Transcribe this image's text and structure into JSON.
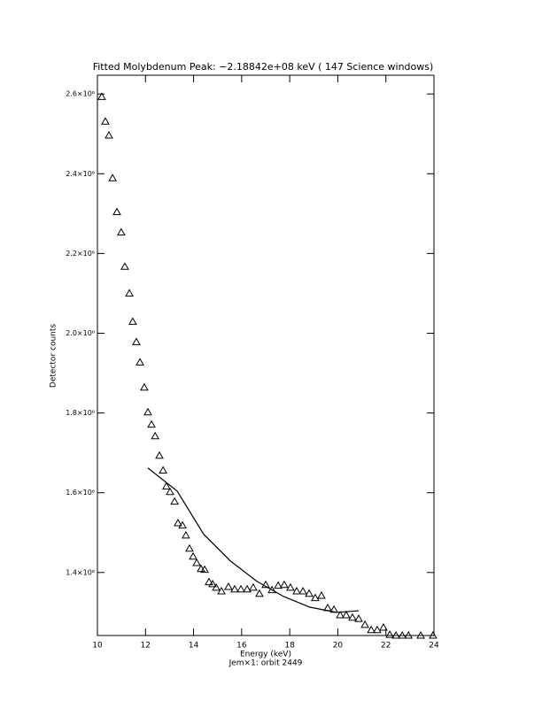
{
  "chart_data": {
    "type": "scatter",
    "title": "Fitted Molybdenum Peak:  −2.18842e+08 keV (         147 Science windows)",
    "xlabel": "Energy (keV)",
    "subtitle": "Jem×1: orbit 2449",
    "ylabel": "Detector counts",
    "xlim": [
      10,
      24
    ],
    "xticks": [
      10,
      12,
      14,
      16,
      18,
      20,
      22,
      24
    ],
    "ylim": [
      1242000,
      2647000
    ],
    "yticks": [
      {
        "value": 1400000,
        "label": "1.4×10⁶"
      },
      {
        "value": 1600000,
        "label": "1.6×10⁶"
      },
      {
        "value": 1800000,
        "label": "1.8×10⁶"
      },
      {
        "value": 2000000,
        "label": "2.0×10⁶"
      },
      {
        "value": 2200000,
        "label": "2.2×10⁶"
      },
      {
        "value": 2400000,
        "label": "2.4×10⁶"
      },
      {
        "value": 2600000,
        "label": "2.6×10⁶"
      }
    ],
    "series": [
      {
        "mode": "markers",
        "marker": "triangle",
        "color": "#000000",
        "x": [
          10.18,
          10.33,
          10.48,
          10.63,
          10.81,
          10.99,
          11.14,
          11.33,
          11.47,
          11.62,
          11.77,
          11.95,
          12.1,
          12.25,
          12.4,
          12.58,
          12.73,
          12.87,
          13.02,
          13.21,
          13.35,
          13.54,
          13.68,
          13.83,
          13.98,
          14.13,
          14.31,
          14.46,
          14.64,
          14.79,
          14.94,
          15.16,
          15.45,
          15.71,
          15.97,
          16.23,
          16.48,
          16.74,
          17.0,
          17.26,
          17.52,
          17.77,
          18.03,
          18.29,
          18.55,
          18.81,
          19.06,
          19.32,
          19.58,
          19.84,
          20.1,
          20.35,
          20.61,
          20.87,
          21.13,
          21.39,
          21.64,
          21.9,
          22.16,
          22.42,
          22.68,
          22.94,
          23.45,
          23.96
        ],
        "values": [
          2593000,
          2531000,
          2496000,
          2389000,
          2304000,
          2253000,
          2167000,
          2100000,
          2029000,
          1978000,
          1927000,
          1864000,
          1802000,
          1771000,
          1742000,
          1693000,
          1656000,
          1616000,
          1602000,
          1578000,
          1524000,
          1518000,
          1493000,
          1460000,
          1440000,
          1424000,
          1409000,
          1407000,
          1376000,
          1371000,
          1362000,
          1353000,
          1364000,
          1358000,
          1358000,
          1358000,
          1362000,
          1347000,
          1369000,
          1356000,
          1367000,
          1369000,
          1362000,
          1353000,
          1353000,
          1347000,
          1336000,
          1342000,
          1311000,
          1307000,
          1293000,
          1293000,
          1287000,
          1284000,
          1269000,
          1256000,
          1256000,
          1262000,
          1244000,
          1242000,
          1242000,
          1242000,
          1242000,
          1242000
        ]
      },
      {
        "mode": "line",
        "color": "#000000",
        "x": [
          12.1,
          13.32,
          14.42,
          15.53,
          16.63,
          17.74,
          18.84,
          19.95,
          20.87
        ],
        "values": [
          1662000,
          1604000,
          1496000,
          1429000,
          1378000,
          1340000,
          1313000,
          1300000,
          1304000
        ]
      }
    ]
  }
}
